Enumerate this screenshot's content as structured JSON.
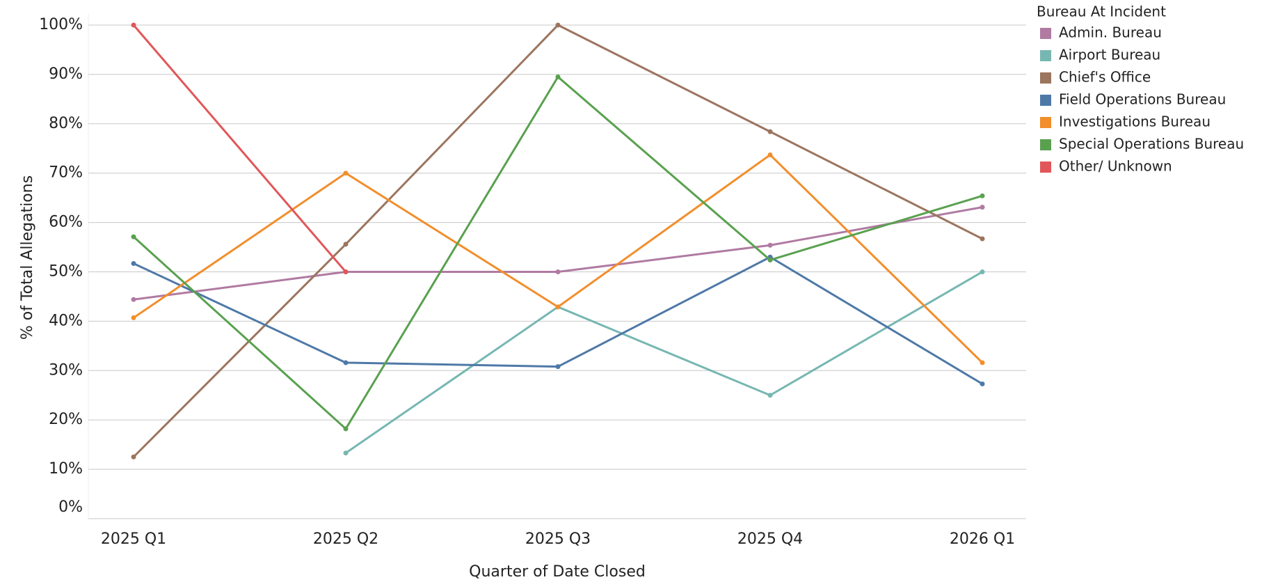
{
  "chart_data": {
    "type": "line",
    "x_label": "Quarter of Date Closed",
    "y_label": "% of Total Allegations",
    "legend_title": "Bureau At Incident",
    "legend_position": "right",
    "grid": true,
    "categories": [
      "2025 Q1",
      "2025 Q2",
      "2025 Q3",
      "2025 Q4",
      "2026 Q1"
    ],
    "ylim": [
      0,
      100
    ],
    "yticks": [
      {
        "value": 0,
        "label": "0%"
      },
      {
        "value": 10,
        "label": "10%"
      },
      {
        "value": 20,
        "label": "20%"
      },
      {
        "value": 30,
        "label": "30%"
      },
      {
        "value": 40,
        "label": "40%"
      },
      {
        "value": 50,
        "label": "50%"
      },
      {
        "value": 60,
        "label": "60%"
      },
      {
        "value": 70,
        "label": "70%"
      },
      {
        "value": 80,
        "label": "80%"
      },
      {
        "value": 90,
        "label": "90%"
      },
      {
        "value": 100,
        "label": "100%"
      }
    ],
    "series": [
      {
        "name": "Admin. Bureau",
        "color": "#b07aa1",
        "values": [
          44.4,
          50,
          50,
          55.4,
          63.1
        ]
      },
      {
        "name": "Airport Bureau",
        "color": "#76b7b2",
        "values": [
          null,
          13.3,
          42.9,
          25,
          50
        ]
      },
      {
        "name": "Chief's Office",
        "color": "#9c755f",
        "values": [
          12.5,
          55.6,
          100,
          78.4,
          56.7
        ]
      },
      {
        "name": "Field Operations Bureau",
        "color": "#4e79a7",
        "values": [
          51.7,
          31.6,
          30.8,
          53,
          27.3
        ]
      },
      {
        "name": "Investigations Bureau",
        "color": "#f28e2b",
        "values": [
          40.7,
          70,
          42.9,
          73.7,
          31.6
        ]
      },
      {
        "name": "Special Operations Bureau",
        "color": "#59a14f",
        "values": [
          57.1,
          18.2,
          89.5,
          52.4,
          65.4
        ]
      },
      {
        "name": "Other/ Unknown",
        "color": "#e15759",
        "values": [
          100,
          50,
          null,
          null,
          null
        ]
      }
    ]
  }
}
